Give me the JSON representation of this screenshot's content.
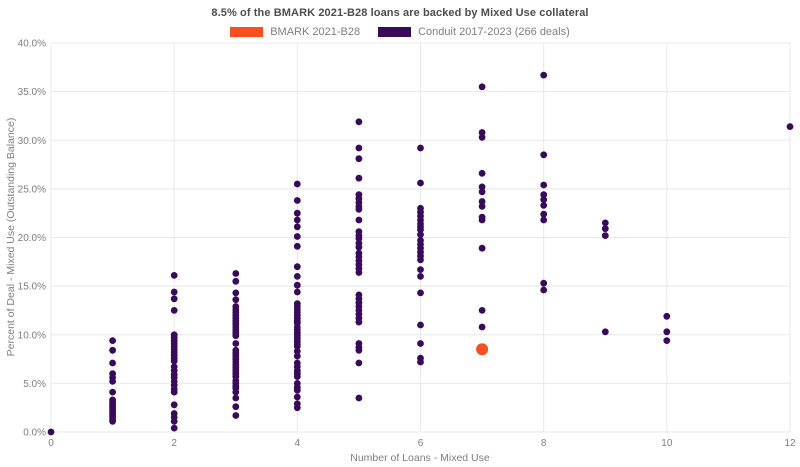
{
  "title": "8.5% of the BMARK 2021-B28 loans are backed by Mixed Use collateral",
  "legend": {
    "items": [
      {
        "label": "BMARK 2021-B28",
        "color": "#f94e20"
      },
      {
        "label": "Conduit 2017-2023 (266 deals)",
        "color": "#3a0a5a"
      }
    ]
  },
  "colors": {
    "bmark_orange": "#f94e20",
    "conduit_purple": "#3a0a5a",
    "gridline": "#e8e8e8",
    "tick_text": "#7f7f7f",
    "title_text": "#4d4d4d"
  },
  "chart_data": {
    "type": "scatter",
    "title": "8.5% of the BMARK 2021-B28 loans are backed by Mixed Use collateral",
    "xlabel": "Number of Loans - Mixed Use",
    "ylabel": "Percent of Deal - Mixed Use (Outstanding Balance)",
    "xlim": [
      0,
      12
    ],
    "ylim": [
      0,
      40
    ],
    "x_ticks": [
      0,
      2,
      4,
      6,
      8,
      10,
      12
    ],
    "y_ticks": [
      0,
      5,
      10,
      15,
      20,
      25,
      30,
      35,
      40
    ],
    "y_tick_labels": [
      "0.0%",
      "5.0%",
      "10.0%",
      "15.0%",
      "20.0%",
      "25.0%",
      "30.0%",
      "35.0%",
      "40.0%"
    ],
    "grid": true,
    "legend_position": "top",
    "series": [
      {
        "name": "Conduit 2017-2023 (266 deals)",
        "color": "#3a0a5a",
        "marker_radius": 3.4,
        "points": [
          [
            0,
            0.0
          ],
          [
            1,
            9.4
          ],
          [
            1,
            8.4
          ],
          [
            1,
            7.1
          ],
          [
            1,
            6.0
          ],
          [
            1,
            5.6
          ],
          [
            1,
            5.2
          ],
          [
            1,
            4.1
          ],
          [
            1,
            3.3
          ],
          [
            1,
            3.1
          ],
          [
            1,
            2.9
          ],
          [
            1,
            2.7
          ],
          [
            1,
            2.5
          ],
          [
            1,
            2.3
          ],
          [
            1,
            2.1
          ],
          [
            1,
            1.9
          ],
          [
            1,
            1.7
          ],
          [
            1,
            1.5
          ],
          [
            1,
            1.3
          ],
          [
            1,
            1.1
          ],
          [
            2,
            16.1
          ],
          [
            2,
            14.4
          ],
          [
            2,
            13.7
          ],
          [
            2,
            12.5
          ],
          [
            2,
            10.0
          ],
          [
            2,
            9.7
          ],
          [
            2,
            9.4
          ],
          [
            2,
            9.1
          ],
          [
            2,
            8.8
          ],
          [
            2,
            8.5
          ],
          [
            2,
            8.2
          ],
          [
            2,
            7.9
          ],
          [
            2,
            7.6
          ],
          [
            2,
            7.3
          ],
          [
            2,
            6.7
          ],
          [
            2,
            6.3
          ],
          [
            2,
            5.9
          ],
          [
            2,
            5.6
          ],
          [
            2,
            5.2
          ],
          [
            2,
            4.8
          ],
          [
            2,
            4.4
          ],
          [
            2,
            4.1
          ],
          [
            2,
            2.8
          ],
          [
            2,
            1.9
          ],
          [
            2,
            1.5
          ],
          [
            2,
            1.1
          ],
          [
            2,
            0.4
          ],
          [
            3,
            16.3
          ],
          [
            3,
            15.5
          ],
          [
            3,
            14.3
          ],
          [
            3,
            13.6
          ],
          [
            3,
            12.9
          ],
          [
            3,
            12.6
          ],
          [
            3,
            12.3
          ],
          [
            3,
            12.0
          ],
          [
            3,
            11.7
          ],
          [
            3,
            11.4
          ],
          [
            3,
            11.1
          ],
          [
            3,
            10.8
          ],
          [
            3,
            10.5
          ],
          [
            3,
            10.2
          ],
          [
            3,
            9.9
          ],
          [
            3,
            9.1
          ],
          [
            3,
            8.4
          ],
          [
            3,
            8.1
          ],
          [
            3,
            7.8
          ],
          [
            3,
            7.5
          ],
          [
            3,
            7.2
          ],
          [
            3,
            6.9
          ],
          [
            3,
            6.6
          ],
          [
            3,
            6.3
          ],
          [
            3,
            6.0
          ],
          [
            3,
            5.7
          ],
          [
            3,
            5.3
          ],
          [
            3,
            5.0
          ],
          [
            3,
            4.7
          ],
          [
            3,
            4.5
          ],
          [
            3,
            4.1
          ],
          [
            3,
            3.5
          ],
          [
            3,
            2.6
          ],
          [
            3,
            1.7
          ],
          [
            4,
            25.5
          ],
          [
            4,
            23.8
          ],
          [
            4,
            22.5
          ],
          [
            4,
            21.8
          ],
          [
            4,
            21.1
          ],
          [
            4,
            20.1
          ],
          [
            4,
            19.1
          ],
          [
            4,
            17.0
          ],
          [
            4,
            16.0
          ],
          [
            4,
            15.1
          ],
          [
            4,
            14.4
          ],
          [
            4,
            13.2
          ],
          [
            4,
            12.9
          ],
          [
            4,
            12.6
          ],
          [
            4,
            12.3
          ],
          [
            4,
            12.0
          ],
          [
            4,
            11.7
          ],
          [
            4,
            11.4
          ],
          [
            4,
            11.2
          ],
          [
            4,
            10.8
          ],
          [
            4,
            10.5
          ],
          [
            4,
            10.2
          ],
          [
            4,
            9.9
          ],
          [
            4,
            9.6
          ],
          [
            4,
            9.3
          ],
          [
            4,
            9.0
          ],
          [
            4,
            8.8
          ],
          [
            4,
            8.3
          ],
          [
            4,
            7.8
          ],
          [
            4,
            7.1
          ],
          [
            4,
            6.7
          ],
          [
            4,
            6.3
          ],
          [
            4,
            6.0
          ],
          [
            4,
            5.7
          ],
          [
            4,
            5.0
          ],
          [
            4,
            4.6
          ],
          [
            4,
            4.3
          ],
          [
            4,
            3.6
          ],
          [
            4,
            2.9
          ],
          [
            4,
            2.5
          ],
          [
            5,
            31.9
          ],
          [
            5,
            29.2
          ],
          [
            5,
            28.1
          ],
          [
            5,
            26.1
          ],
          [
            5,
            24.4
          ],
          [
            5,
            24.0
          ],
          [
            5,
            23.6
          ],
          [
            5,
            23.2
          ],
          [
            5,
            22.9
          ],
          [
            5,
            21.8
          ],
          [
            5,
            20.6
          ],
          [
            5,
            20.2
          ],
          [
            5,
            19.9
          ],
          [
            5,
            19.4
          ],
          [
            5,
            19.0
          ],
          [
            5,
            18.4
          ],
          [
            5,
            18.0
          ],
          [
            5,
            17.6
          ],
          [
            5,
            17.2
          ],
          [
            5,
            16.8
          ],
          [
            5,
            16.4
          ],
          [
            5,
            14.1
          ],
          [
            5,
            13.7
          ],
          [
            5,
            13.3
          ],
          [
            5,
            12.9
          ],
          [
            5,
            12.5
          ],
          [
            5,
            12.1
          ],
          [
            5,
            11.7
          ],
          [
            5,
            11.3
          ],
          [
            5,
            9.1
          ],
          [
            5,
            8.7
          ],
          [
            5,
            8.4
          ],
          [
            5,
            7.1
          ],
          [
            5,
            3.5
          ],
          [
            6,
            29.2
          ],
          [
            6,
            25.6
          ],
          [
            6,
            23.0
          ],
          [
            6,
            22.6
          ],
          [
            6,
            22.2
          ],
          [
            6,
            21.8
          ],
          [
            6,
            21.4
          ],
          [
            6,
            21.1
          ],
          [
            6,
            20.8
          ],
          [
            6,
            20.3
          ],
          [
            6,
            19.7
          ],
          [
            6,
            19.3
          ],
          [
            6,
            18.9
          ],
          [
            6,
            18.5
          ],
          [
            6,
            18.1
          ],
          [
            6,
            17.7
          ],
          [
            6,
            16.7
          ],
          [
            6,
            16.0
          ],
          [
            6,
            14.3
          ],
          [
            6,
            11.0
          ],
          [
            6,
            9.1
          ],
          [
            6,
            7.6
          ],
          [
            6,
            7.2
          ],
          [
            7,
            35.5
          ],
          [
            7,
            30.8
          ],
          [
            7,
            30.3
          ],
          [
            7,
            26.6
          ],
          [
            7,
            25.2
          ],
          [
            7,
            24.7
          ],
          [
            7,
            23.7
          ],
          [
            7,
            23.2
          ],
          [
            7,
            22.1
          ],
          [
            7,
            21.8
          ],
          [
            7,
            18.9
          ],
          [
            7,
            12.5
          ],
          [
            7,
            10.8
          ],
          [
            8,
            36.7
          ],
          [
            8,
            28.5
          ],
          [
            8,
            25.4
          ],
          [
            8,
            24.4
          ],
          [
            8,
            23.9
          ],
          [
            8,
            23.3
          ],
          [
            8,
            22.4
          ],
          [
            8,
            21.8
          ],
          [
            8,
            15.3
          ],
          [
            8,
            14.6
          ],
          [
            9,
            21.5
          ],
          [
            9,
            20.9
          ],
          [
            9,
            20.2
          ],
          [
            9,
            10.3
          ],
          [
            10,
            11.9
          ],
          [
            10,
            10.3
          ],
          [
            10,
            9.4
          ],
          [
            12,
            31.4
          ]
        ]
      },
      {
        "name": "BMARK 2021-B28",
        "color": "#f94e20",
        "marker_radius": 6,
        "points": [
          [
            7,
            8.5
          ]
        ]
      }
    ]
  }
}
